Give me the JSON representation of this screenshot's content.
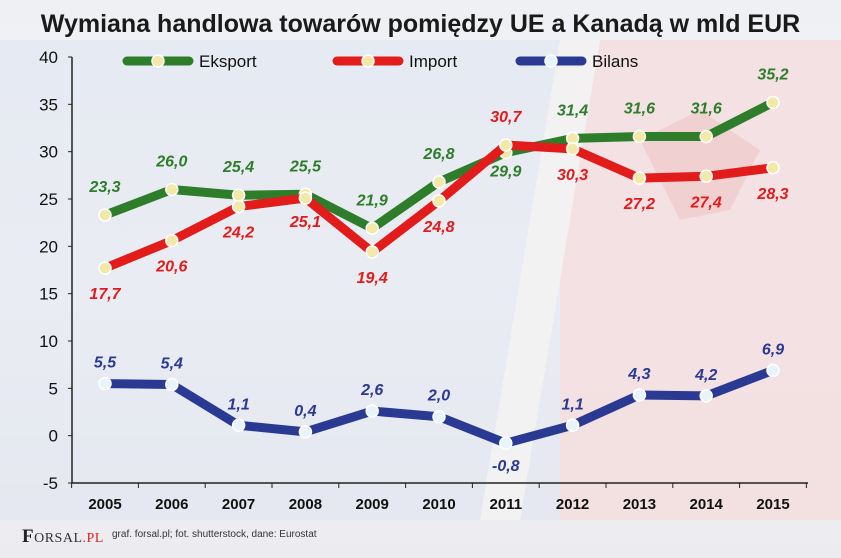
{
  "footer": {
    "logo_first": "F",
    "logo_mid": "ORSAL",
    "logo_end": ".PL",
    "credit": "graf. forsal.pl; fot. shutterstock, dane: Eurostat"
  },
  "chart_data": {
    "type": "line",
    "title": "Wymiana handlowa towarów pomiędzy UE a Kanadą w mld EUR",
    "xlabel": "",
    "ylabel": "",
    "x": [
      "2005",
      "2006",
      "2007",
      "2008",
      "2009",
      "2010",
      "2011",
      "2012",
      "2013",
      "2014",
      "2015"
    ],
    "ylim": [
      -5,
      40
    ],
    "yticks": [
      "40",
      "35",
      "30",
      "25",
      "20",
      "15",
      "10",
      "5",
      "0",
      "-5"
    ],
    "grid": false,
    "legend": "top",
    "series": [
      {
        "name": "Eksport",
        "color": "#2e7d2a",
        "values": [
          23.3,
          26.0,
          25.4,
          25.5,
          21.9,
          26.8,
          29.9,
          31.4,
          31.6,
          31.6,
          35.2
        ],
        "labels": [
          "23,3",
          "26,0",
          "25,4",
          "25,5",
          "21,9",
          "26,8",
          "29,9",
          "31,4",
          "31,6",
          "31,6",
          "35,2"
        ]
      },
      {
        "name": "Import",
        "color": "#e21b1b",
        "values": [
          17.7,
          20.6,
          24.2,
          25.1,
          19.4,
          24.8,
          30.7,
          30.3,
          27.2,
          27.4,
          28.3
        ],
        "labels": [
          "17,7",
          "20,6",
          "24,2",
          "25,1",
          "19,4",
          "24,8",
          "30,7",
          "30,3",
          "27,2",
          "27,4",
          "28,3"
        ]
      },
      {
        "name": "Bilans",
        "color": "#2a3a92",
        "values": [
          5.5,
          5.4,
          1.1,
          0.4,
          2.6,
          2.0,
          -0.8,
          1.1,
          4.3,
          4.2,
          6.9
        ],
        "labels": [
          "5,5",
          "5,4",
          "1,1",
          "0,4",
          "2,6",
          "2,0",
          "-0,8",
          "1,1",
          "4,3",
          "4,2",
          "6,9"
        ]
      }
    ]
  }
}
